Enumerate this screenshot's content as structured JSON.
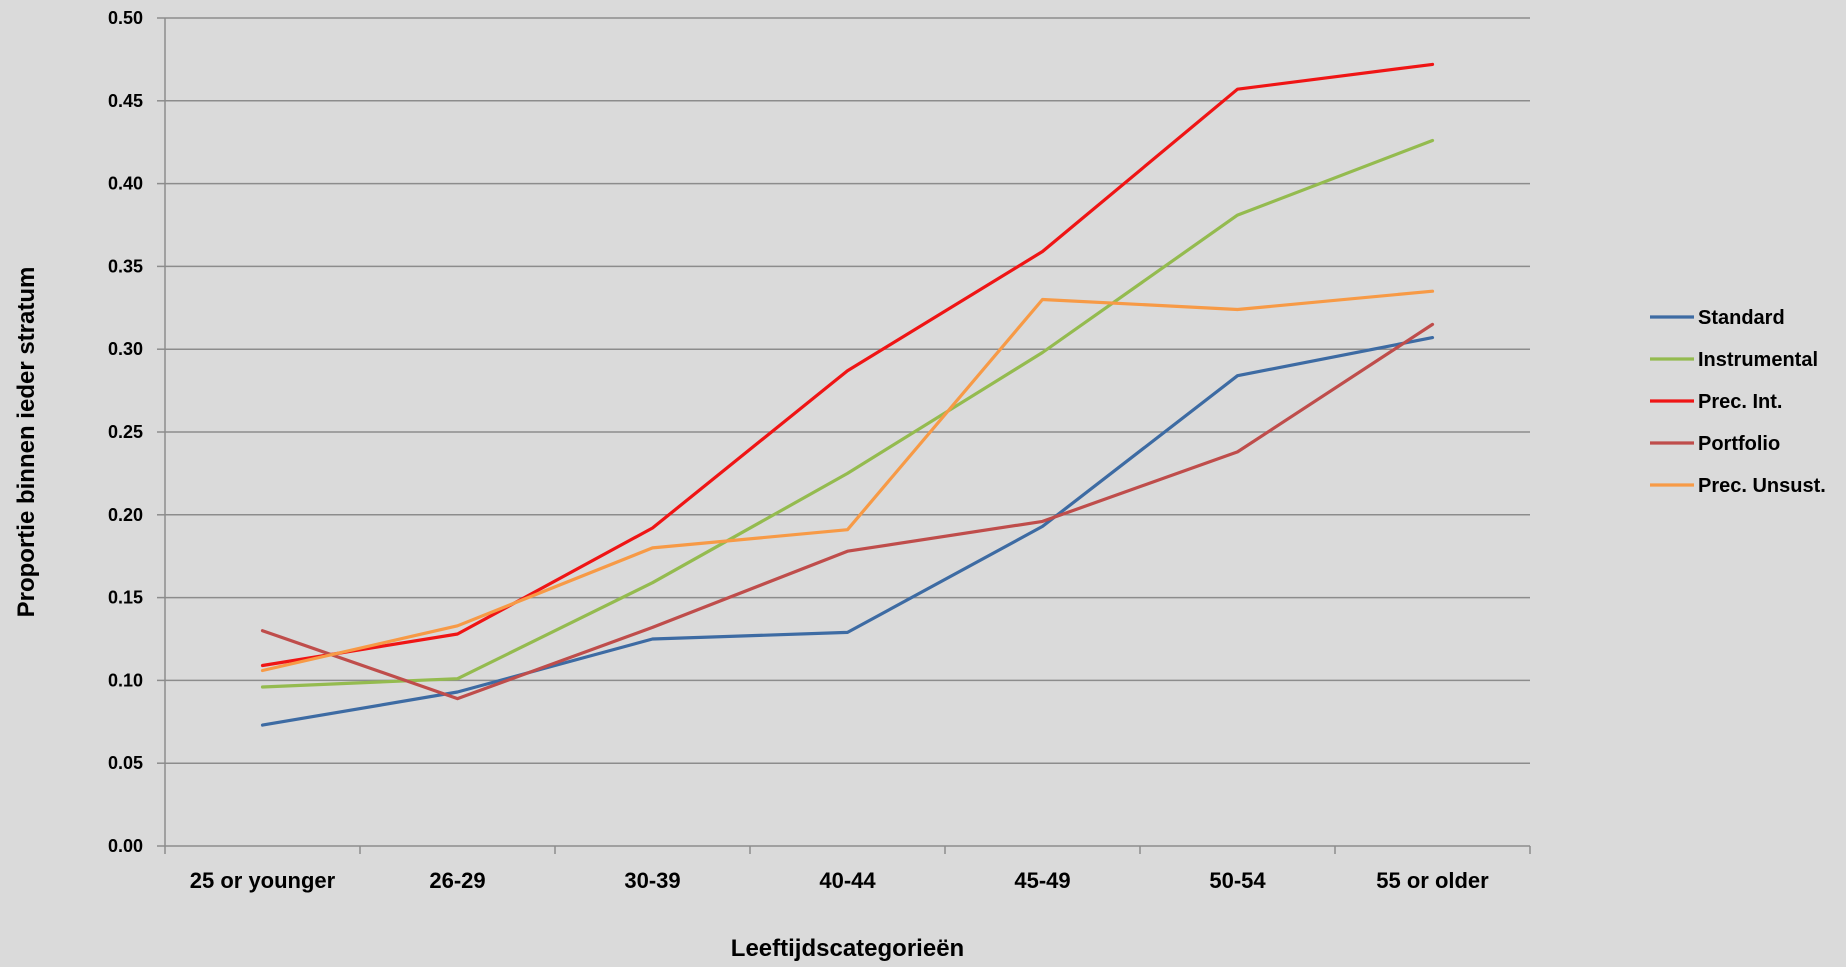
{
  "chart_data": {
    "type": "line",
    "title": "",
    "xlabel": "Leeftijdscategorieën",
    "ylabel": "Proportie binnen ieder stratum",
    "categories": [
      "25 or younger",
      "26-29",
      "30-39",
      "40-44",
      "45-49",
      "50-54",
      "55 or older"
    ],
    "ylim": [
      0,
      0.5
    ],
    "yticks": [
      "0.00",
      "0.05",
      "0.10",
      "0.15",
      "0.20",
      "0.25",
      "0.30",
      "0.35",
      "0.40",
      "0.45",
      "0.50"
    ],
    "grid": "horizontal",
    "legend_position": "right",
    "series": [
      {
        "name": "Standard",
        "color": "#3d6ba3",
        "values": [
          0.073,
          0.093,
          0.125,
          0.129,
          0.193,
          0.284,
          0.307
        ]
      },
      {
        "name": "Instrumental",
        "color": "#94bb4f",
        "values": [
          0.096,
          0.101,
          0.159,
          0.225,
          0.298,
          0.381,
          0.426
        ]
      },
      {
        "name": "Prec. Int.",
        "color": "#ef1515",
        "values": [
          0.109,
          0.128,
          0.192,
          0.287,
          0.359,
          0.457,
          0.472
        ]
      },
      {
        "name": "Portfolio",
        "color": "#bf4d4b",
        "values": [
          0.13,
          0.089,
          0.132,
          0.178,
          0.196,
          0.238,
          0.315
        ]
      },
      {
        "name": "Prec. Unsust.",
        "color": "#f79a46",
        "values": [
          0.106,
          0.133,
          0.18,
          0.191,
          0.33,
          0.324,
          0.335
        ]
      }
    ]
  }
}
